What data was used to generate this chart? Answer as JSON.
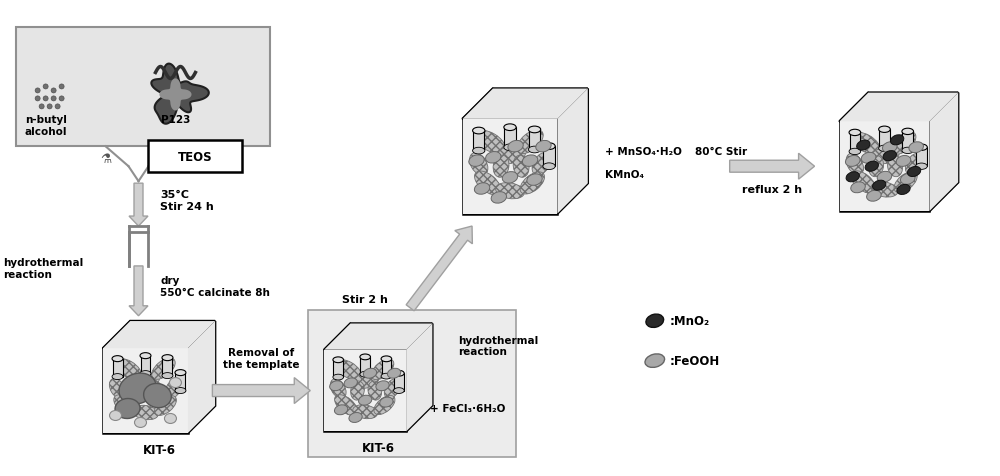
{
  "bg_color": "#ffffff",
  "box_fill": "#e8e8e8",
  "cube_fill": "#ffffff",
  "cube_top": "#e0e0e0",
  "cube_right": "#c8c8c8",
  "arrow_fill": "#d0d0d0",
  "arrow_edge": "#a0a0a0",
  "silica_fill": "#c8c8c8",
  "silica_edge": "#808080",
  "template_fill": "#909090",
  "feooh_fill": "#a0a0a0",
  "mno2_fill": "#404040",
  "tube_fill": "#d8d8d8",
  "figure_width": 10.0,
  "figure_height": 4.77,
  "xlim": [
    0,
    10
  ],
  "ylim": [
    0,
    4.77
  ]
}
